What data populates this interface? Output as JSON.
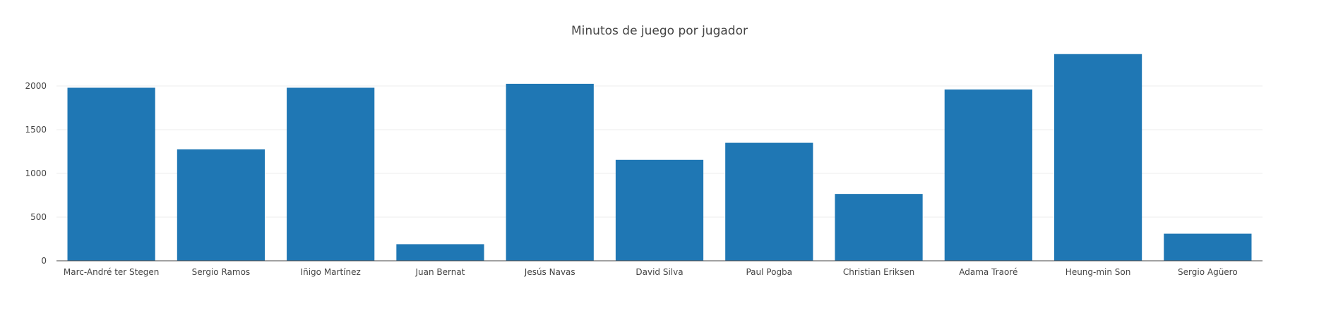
{
  "chart_data": {
    "type": "bar",
    "title": "Minutos de juego por jugador",
    "xlabel": "",
    "ylabel": "",
    "categories": [
      "Marc-André ter Stegen",
      "Sergio Ramos",
      "Iñigo Martínez",
      "Juan Bernat",
      "Jesús Navas",
      "David Silva",
      "Paul Pogba",
      "Christian Eriksen",
      "Adama Traoré",
      "Heung-min Son",
      "Sergio Agüero"
    ],
    "values": [
      1980,
      1275,
      1980,
      190,
      2025,
      1155,
      1350,
      765,
      1960,
      2365,
      310
    ],
    "yticks": [
      0,
      500,
      1000,
      1500,
      2000
    ],
    "ylim": [
      0,
      2500
    ],
    "grid": true,
    "legend": "none",
    "colors": {
      "bar": "#1f77b4",
      "grid": "#eeeeee",
      "axis": "#444444",
      "tick_text": "#444444",
      "title": "#444444"
    }
  }
}
